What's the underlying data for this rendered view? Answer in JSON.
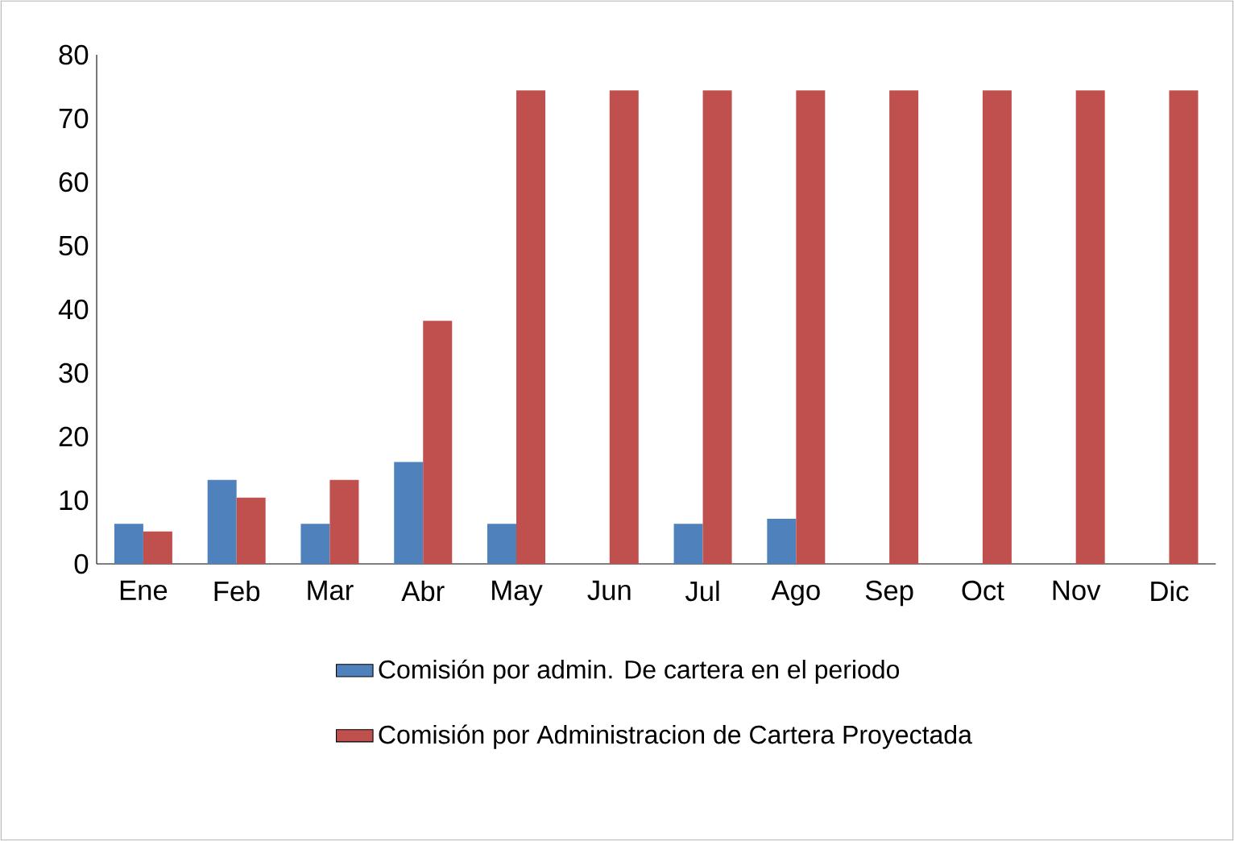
{
  "chart_data": {
    "type": "bar",
    "categories": [
      "Ene",
      "Feb",
      "Mar",
      "Abr",
      "May",
      "Jun",
      "Jul",
      "Ago",
      "Sep",
      "Oct",
      "Nov",
      "Dic"
    ],
    "series": [
      {
        "name": "Comisión por admin. De cartera en el periodo",
        "color": "#4f81bd",
        "values": [
          6.3,
          13.2,
          6.3,
          16,
          6.3,
          null,
          6.3,
          7.1,
          null,
          null,
          null,
          null
        ]
      },
      {
        "name": "Comisión por Administracion de Cartera Proyectada",
        "color": "#c0504d",
        "values": [
          5.1,
          10.4,
          13.2,
          38.2,
          74.4,
          74.4,
          74.4,
          74.4,
          74.4,
          74.4,
          74.4,
          74.4
        ]
      }
    ],
    "ylim": [
      0,
      80
    ],
    "yticks": [
      0,
      10,
      20,
      30,
      40,
      50,
      60,
      70,
      80
    ],
    "grid": false,
    "legend": "bottom"
  }
}
